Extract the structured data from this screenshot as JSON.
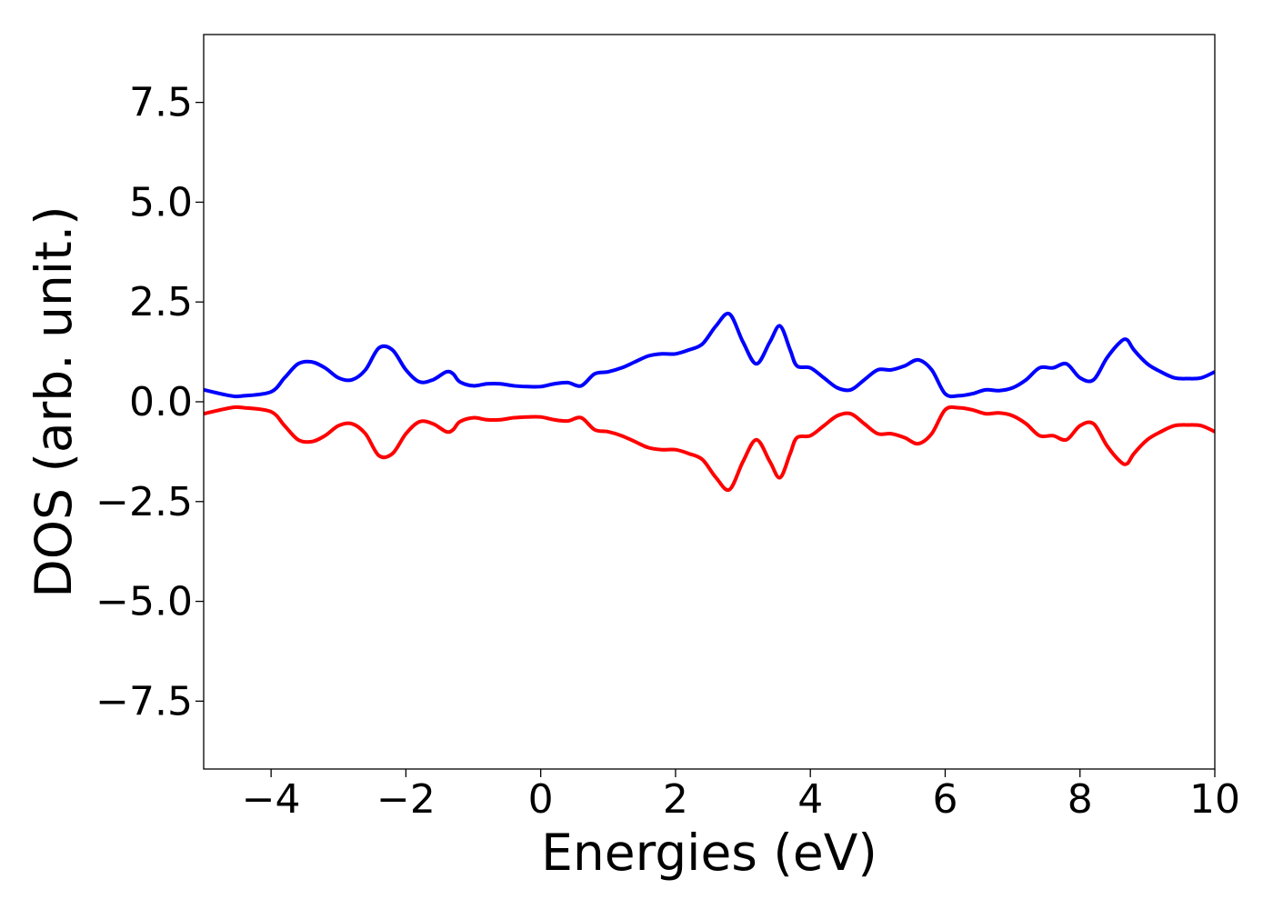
{
  "chart_data": {
    "type": "line",
    "title": "",
    "xlabel": "Energies (eV)",
    "ylabel": "DOS (arb. unit.)",
    "xlim": [
      -5,
      10
    ],
    "ylim": [
      -9.2,
      9.2
    ],
    "xticks": [
      -4,
      -2,
      0,
      2,
      4,
      6,
      8,
      10
    ],
    "xtick_labels": [
      "−4",
      "−2",
      "0",
      "2",
      "4",
      "6",
      "8",
      "10"
    ],
    "yticks": [
      7.5,
      5.0,
      2.5,
      0.0,
      -2.5,
      -5.0,
      -7.5
    ],
    "ytick_labels": [
      "7.5",
      "5.0",
      "2.5",
      "0.0",
      "−2.5",
      "−5.0",
      "−7.5"
    ],
    "grid": false,
    "legend": "none",
    "series": [
      {
        "color": "#0000ff",
        "x": [
          -5.0,
          -4.6,
          -4.4,
          -4.0,
          -3.8,
          -3.6,
          -3.4,
          -3.2,
          -3.0,
          -2.8,
          -2.6,
          -2.4,
          -2.2,
          -2.0,
          -1.8,
          -1.6,
          -1.4,
          -1.3,
          -1.2,
          -1.0,
          -0.8,
          -0.6,
          -0.4,
          -0.2,
          0.0,
          0.2,
          0.4,
          0.6,
          0.8,
          1.0,
          1.2,
          1.4,
          1.6,
          1.8,
          2.0,
          2.2,
          2.4,
          2.6,
          2.8,
          3.0,
          3.2,
          3.4,
          3.55,
          3.7,
          3.8,
          4.0,
          4.2,
          4.4,
          4.6,
          4.8,
          5.0,
          5.2,
          5.4,
          5.6,
          5.8,
          6.0,
          6.2,
          6.4,
          6.6,
          6.8,
          7.0,
          7.2,
          7.4,
          7.6,
          7.8,
          8.0,
          8.2,
          8.4,
          8.6,
          8.7,
          8.8,
          9.0,
          9.2,
          9.4,
          9.6,
          9.8,
          10.0
        ],
        "y": [
          0.3,
          0.15,
          0.15,
          0.25,
          0.6,
          0.95,
          1.0,
          0.85,
          0.6,
          0.55,
          0.8,
          1.35,
          1.3,
          0.8,
          0.5,
          0.55,
          0.75,
          0.7,
          0.5,
          0.4,
          0.45,
          0.45,
          0.4,
          0.38,
          0.38,
          0.45,
          0.48,
          0.4,
          0.7,
          0.75,
          0.85,
          1.0,
          1.15,
          1.2,
          1.2,
          1.3,
          1.45,
          1.9,
          2.2,
          1.5,
          0.95,
          1.5,
          1.9,
          1.3,
          0.9,
          0.85,
          0.6,
          0.35,
          0.3,
          0.55,
          0.8,
          0.8,
          0.9,
          1.05,
          0.8,
          0.2,
          0.15,
          0.2,
          0.3,
          0.28,
          0.35,
          0.55,
          0.85,
          0.85,
          0.95,
          0.6,
          0.55,
          1.1,
          1.5,
          1.55,
          1.3,
          0.95,
          0.75,
          0.6,
          0.58,
          0.6,
          0.75
        ]
      },
      {
        "color": "#ff0000",
        "x": [
          -5.0,
          -4.6,
          -4.4,
          -4.0,
          -3.8,
          -3.6,
          -3.4,
          -3.2,
          -3.0,
          -2.8,
          -2.6,
          -2.4,
          -2.2,
          -2.0,
          -1.8,
          -1.6,
          -1.4,
          -1.3,
          -1.2,
          -1.0,
          -0.8,
          -0.6,
          -0.4,
          -0.2,
          0.0,
          0.2,
          0.4,
          0.6,
          0.8,
          1.0,
          1.2,
          1.4,
          1.6,
          1.8,
          2.0,
          2.2,
          2.4,
          2.6,
          2.8,
          3.0,
          3.2,
          3.4,
          3.55,
          3.7,
          3.8,
          4.0,
          4.2,
          4.4,
          4.6,
          4.8,
          5.0,
          5.2,
          5.4,
          5.6,
          5.8,
          6.0,
          6.2,
          6.4,
          6.6,
          6.8,
          7.0,
          7.2,
          7.4,
          7.6,
          7.8,
          8.0,
          8.2,
          8.4,
          8.6,
          8.7,
          8.8,
          9.0,
          9.2,
          9.4,
          9.6,
          9.8,
          10.0
        ],
        "y": [
          -0.3,
          -0.15,
          -0.15,
          -0.25,
          -0.6,
          -0.95,
          -1.0,
          -0.85,
          -0.6,
          -0.55,
          -0.8,
          -1.35,
          -1.3,
          -0.8,
          -0.5,
          -0.55,
          -0.75,
          -0.7,
          -0.5,
          -0.4,
          -0.45,
          -0.45,
          -0.4,
          -0.38,
          -0.38,
          -0.45,
          -0.48,
          -0.4,
          -0.7,
          -0.75,
          -0.85,
          -1.0,
          -1.15,
          -1.2,
          -1.2,
          -1.3,
          -1.45,
          -1.9,
          -2.2,
          -1.5,
          -0.95,
          -1.5,
          -1.9,
          -1.3,
          -0.9,
          -0.85,
          -0.6,
          -0.35,
          -0.3,
          -0.55,
          -0.8,
          -0.8,
          -0.9,
          -1.05,
          -0.8,
          -0.2,
          -0.15,
          -0.2,
          -0.3,
          -0.28,
          -0.35,
          -0.55,
          -0.85,
          -0.85,
          -0.95,
          -0.6,
          -0.55,
          -1.1,
          -1.5,
          -1.55,
          -1.3,
          -0.95,
          -0.75,
          -0.6,
          -0.58,
          -0.6,
          -0.75
        ]
      }
    ]
  }
}
